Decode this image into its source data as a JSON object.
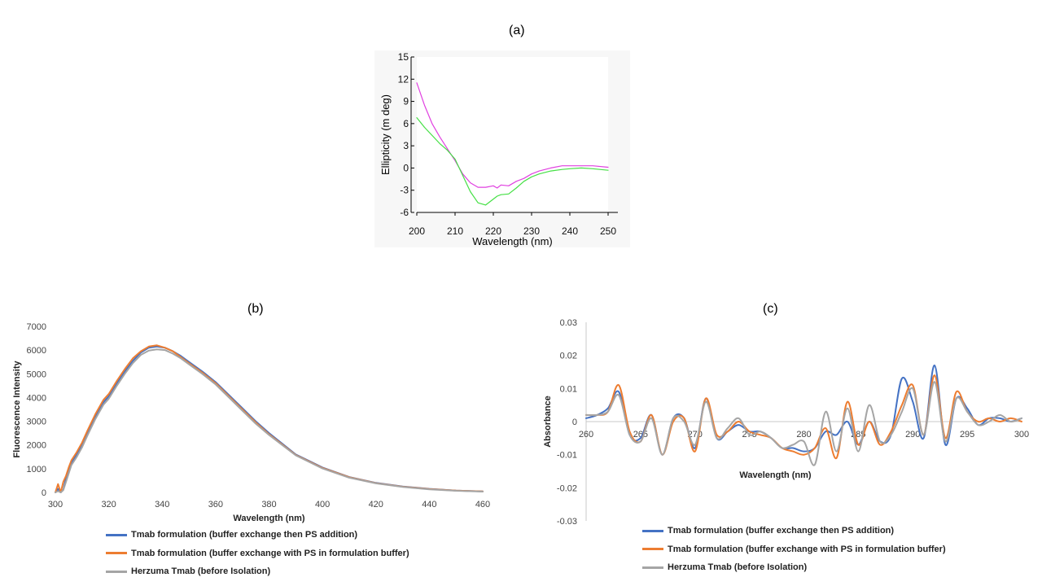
{
  "chart_data": [
    {
      "panel": "(a)",
      "type": "line",
      "xlabel": "Wavelength (nm)",
      "ylabel": "Ellipticity (m deg)",
      "xlim": [
        200,
        250
      ],
      "ylim": [
        -6,
        15
      ],
      "xticks": [
        200,
        210,
        220,
        230,
        240,
        250
      ],
      "yticks": [
        15,
        12,
        9,
        6,
        3,
        0,
        -3,
        -6
      ],
      "grid": false,
      "series": [
        {
          "color": "#e040e0",
          "x": [
            200,
            202,
            204,
            206,
            208,
            210,
            212,
            214,
            216,
            218,
            220,
            221,
            222,
            224,
            226,
            228,
            230,
            232,
            235,
            238,
            240,
            243,
            246,
            250
          ],
          "y": [
            11.5,
            8.5,
            6,
            4.2,
            2.6,
            1,
            -0.8,
            -2,
            -2.6,
            -2.6,
            -2.4,
            -2.7,
            -2.3,
            -2.4,
            -1.8,
            -1.4,
            -0.8,
            -0.4,
            0,
            0.3,
            0.3,
            0.3,
            0.3,
            0.1
          ]
        },
        {
          "color": "#44e044",
          "x": [
            200,
            202,
            204,
            206,
            208,
            210,
            212,
            214,
            216,
            218,
            220,
            221,
            222,
            224,
            226,
            228,
            230,
            232,
            235,
            238,
            240,
            243,
            246,
            250
          ],
          "y": [
            6.8,
            5.5,
            4.4,
            3.3,
            2.4,
            1.2,
            -1,
            -3.2,
            -4.7,
            -5,
            -4.2,
            -3.8,
            -3.6,
            -3.5,
            -2.7,
            -1.8,
            -1.2,
            -0.8,
            -0.4,
            -0.2,
            -0.1,
            0,
            -0.1,
            -0.3
          ]
        }
      ]
    },
    {
      "panel": "(b)",
      "type": "line",
      "xlabel": "Wavelength (nm)",
      "ylabel": "Fluorescence Intensity",
      "xlim": [
        300,
        460
      ],
      "ylim": [
        0,
        7000
      ],
      "xticks": [
        300,
        320,
        340,
        360,
        380,
        400,
        420,
        440,
        460
      ],
      "yticks": [
        0,
        1000,
        2000,
        3000,
        4000,
        5000,
        6000,
        7000
      ],
      "grid": false,
      "legend_position": "bottom",
      "series": [
        {
          "name": "Tmab formulation (buffer exchange then PS addition)",
          "color": "#4472C4",
          "x": [
            300,
            301,
            302,
            303,
            304,
            305,
            306,
            308,
            310,
            312,
            315,
            318,
            320,
            323,
            326,
            329,
            332,
            335,
            338,
            341,
            344,
            347,
            350,
            355,
            360,
            365,
            370,
            375,
            380,
            390,
            400,
            410,
            420,
            430,
            440,
            450,
            460
          ],
          "y": [
            0,
            150,
            0,
            120,
            600,
            900,
            1250,
            1600,
            2000,
            2500,
            3200,
            3800,
            4050,
            4600,
            5100,
            5550,
            5900,
            6100,
            6150,
            6100,
            5950,
            5750,
            5500,
            5100,
            4650,
            4100,
            3550,
            3000,
            2500,
            1600,
            1050,
            650,
            400,
            250,
            150,
            80,
            40
          ]
        },
        {
          "name": "Tmab formulation (buffer exchange with PS in formulation buffer)",
          "color": "#ED7D31",
          "x": [
            300,
            301,
            302,
            303,
            304,
            305,
            306,
            308,
            310,
            312,
            315,
            318,
            320,
            323,
            326,
            329,
            332,
            335,
            338,
            341,
            344,
            347,
            350,
            355,
            360,
            365,
            370,
            375,
            380,
            390,
            400,
            410,
            420,
            430,
            440,
            450,
            460
          ],
          "y": [
            0,
            350,
            0,
            450,
            700,
            1050,
            1350,
            1700,
            2100,
            2600,
            3300,
            3900,
            4150,
            4700,
            5200,
            5650,
            5950,
            6150,
            6200,
            6100,
            5950,
            5700,
            5450,
            5050,
            4600,
            4050,
            3500,
            2950,
            2450,
            1580,
            1030,
            640,
            390,
            240,
            140,
            75,
            40
          ]
        },
        {
          "name": "Herzuma Tmab (before Isolation)",
          "color": "#A5A5A5",
          "x": [
            300,
            301,
            302,
            303,
            304,
            305,
            306,
            308,
            310,
            312,
            315,
            318,
            320,
            323,
            326,
            329,
            332,
            335,
            338,
            341,
            344,
            347,
            350,
            355,
            360,
            365,
            370,
            375,
            380,
            390,
            400,
            410,
            420,
            430,
            440,
            450,
            460
          ],
          "y": [
            0,
            50,
            0,
            100,
            450,
            800,
            1150,
            1500,
            1900,
            2400,
            3100,
            3700,
            3950,
            4500,
            5000,
            5450,
            5800,
            5980,
            6030,
            6000,
            5850,
            5650,
            5400,
            5000,
            4550,
            4000,
            3450,
            2900,
            2420,
            1560,
            1010,
            620,
            380,
            230,
            130,
            70,
            35
          ]
        }
      ]
    },
    {
      "panel": "(c)",
      "type": "line",
      "xlabel": "Wavelength (nm)",
      "ylabel": "Absorbance",
      "xlim": [
        260,
        300
      ],
      "ylim": [
        -0.03,
        0.03
      ],
      "xticks": [
        260,
        265,
        270,
        275,
        280,
        285,
        290,
        295,
        300
      ],
      "yticks": [
        0.03,
        0.02,
        0.01,
        0,
        -0.01,
        -0.02,
        -0.03
      ],
      "grid": false,
      "legend_position": "bottom",
      "series": [
        {
          "name": "Tmab formulation (buffer exchange then PS addition)",
          "color": "#4472C4",
          "x": [
            260,
            261,
            262,
            263,
            264,
            265,
            266,
            267,
            268,
            269,
            270,
            271,
            272,
            273,
            274,
            275,
            276,
            277,
            278,
            279,
            280,
            281,
            282,
            283,
            284,
            285,
            286,
            287,
            288,
            289,
            290,
            291,
            292,
            293,
            294,
            295,
            296,
            297,
            298,
            299,
            300
          ],
          "y": [
            0.001,
            0.002,
            0.004,
            0.009,
            -0.004,
            -0.005,
            0.002,
            -0.01,
            0.001,
            0.001,
            -0.008,
            0.007,
            -0.005,
            -0.003,
            -0.001,
            -0.003,
            -0.003,
            -0.005,
            -0.008,
            -0.008,
            -0.009,
            -0.008,
            -0.003,
            -0.004,
            0.0,
            -0.007,
            0.0,
            -0.006,
            -0.004,
            0.013,
            0.006,
            -0.005,
            0.017,
            -0.007,
            0.007,
            0.004,
            -0.001,
            0.001,
            0.001,
            0.0,
            0.001
          ]
        },
        {
          "name": "Tmab formulation (buffer exchange with PS in formulation buffer)",
          "color": "#ED7D31",
          "x": [
            260,
            261,
            262,
            263,
            264,
            265,
            266,
            267,
            268,
            269,
            270,
            271,
            272,
            273,
            274,
            275,
            276,
            277,
            278,
            279,
            280,
            281,
            282,
            283,
            284,
            285,
            286,
            287,
            288,
            289,
            290,
            291,
            292,
            293,
            294,
            295,
            296,
            297,
            298,
            299,
            300
          ],
          "y": [
            0.002,
            0.002,
            0.003,
            0.011,
            -0.003,
            -0.006,
            0.002,
            -0.01,
            0.0,
            0.001,
            -0.009,
            0.007,
            -0.004,
            -0.003,
            0.0,
            -0.003,
            -0.004,
            -0.005,
            -0.008,
            -0.009,
            -0.01,
            -0.008,
            -0.002,
            -0.011,
            0.006,
            -0.007,
            0.0,
            -0.007,
            -0.003,
            0.005,
            0.011,
            -0.004,
            0.014,
            -0.005,
            0.009,
            0.003,
            0.0,
            0.001,
            0.0,
            0.001,
            0.0
          ]
        },
        {
          "name": "Herzuma Tmab (before Isolation)",
          "color": "#A5A5A5",
          "x": [
            260,
            261,
            262,
            263,
            264,
            265,
            266,
            267,
            268,
            269,
            270,
            271,
            272,
            273,
            274,
            275,
            276,
            277,
            278,
            279,
            280,
            281,
            282,
            283,
            284,
            285,
            286,
            287,
            288,
            289,
            290,
            291,
            292,
            293,
            294,
            295,
            296,
            297,
            298,
            299,
            300
          ],
          "y": [
            0.002,
            0.002,
            0.003,
            0.008,
            -0.004,
            -0.006,
            0.001,
            -0.01,
            0.001,
            0.0,
            -0.007,
            0.006,
            -0.005,
            -0.002,
            0.001,
            -0.004,
            -0.003,
            -0.005,
            -0.008,
            -0.007,
            -0.006,
            -0.013,
            0.003,
            -0.009,
            0.004,
            -0.009,
            0.005,
            -0.006,
            -0.004,
            0.003,
            0.01,
            -0.004,
            0.012,
            -0.006,
            0.007,
            0.003,
            -0.001,
            0.0,
            0.002,
            0.0,
            0.001
          ]
        }
      ]
    }
  ]
}
